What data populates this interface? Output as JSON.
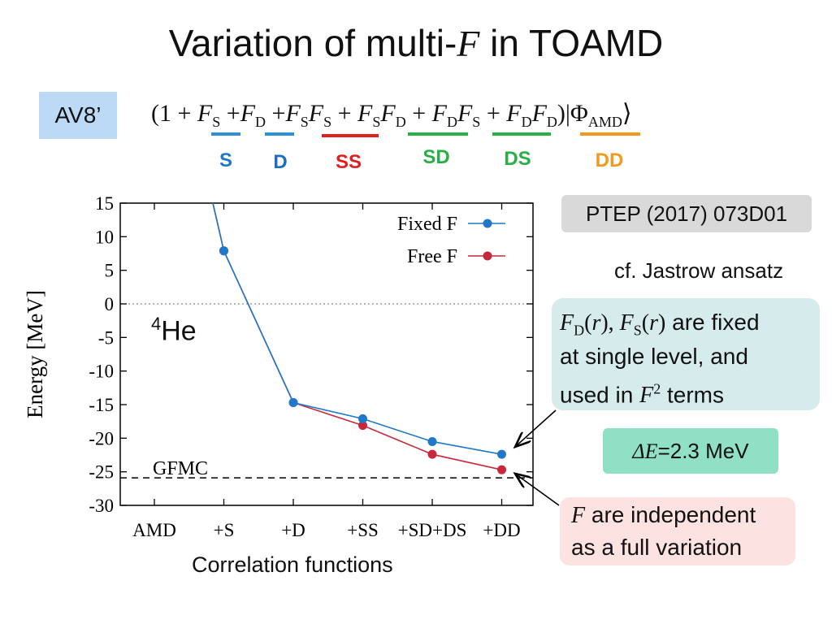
{
  "slide": {
    "title_pre": "Variation of multi-",
    "title_var": "F",
    "title_post": " in TOAMD",
    "label": "AV8’",
    "formula": {
      "open": "(1 + ",
      "close": ")|Φ",
      "close_sub": "AMD",
      "ket": "⟩"
    },
    "terms": [
      {
        "id": "S",
        "label": "S",
        "color": "#2E8FD9"
      },
      {
        "id": "D",
        "label": "D",
        "color": "#1A6FC4"
      },
      {
        "id": "SS",
        "label": "SS",
        "color": "#E02020"
      },
      {
        "id": "SD",
        "label": "SD",
        "color": "#28B046"
      },
      {
        "id": "DS",
        "label": "DS",
        "color": "#28B046"
      },
      {
        "id": "DD",
        "label": "DD",
        "color": "#F39A1E"
      }
    ],
    "reference": "PTEP (2017) 073D01",
    "cf_note": "cf. Jastrow ansatz",
    "fixed_note": {
      "line1_post": " are fixed",
      "line2": "at single level, and",
      "line3_pre": "used in ",
      "line3_post": " terms"
    },
    "delta_e": {
      "symbol": "ΔE",
      "value": "=2.3 MeV"
    },
    "free_note": {
      "line1_var": "F",
      "line1_post": " are independent",
      "line2": "as a full variation"
    },
    "nucleus": {
      "mass": "4",
      "symbol": "He"
    },
    "colors": {
      "fixed": "#1F78C8",
      "free": "#C8283C",
      "av8_bg": "#bcd9f5",
      "fixed_box": "#d6ebec",
      "delta_box": "#8fe0c4",
      "free_box": "#fde2e2"
    }
  },
  "chart_data": {
    "type": "line",
    "categories": [
      "AMD",
      "+S",
      "+D",
      "+SS",
      "+SD+DS",
      "+DD"
    ],
    "series": [
      {
        "name": "Fixed F",
        "values": [
          null,
          7.9,
          -14.7,
          -17.1,
          -20.5,
          -22.4
        ],
        "color": "#1F78C8"
      },
      {
        "name": "Free F",
        "values": [
          null,
          7.9,
          -14.7,
          -18.1,
          -22.4,
          -24.7
        ],
        "color": "#C8283C"
      }
    ],
    "curve_entry": {
      "from": "AMD",
      "note": "line enters from above y=15 between AMD and +S"
    },
    "reference_lines": [
      {
        "label": "GFMC",
        "y": -25.9,
        "style": "dashed"
      },
      {
        "label": "",
        "y": 0,
        "style": "dotted"
      }
    ],
    "ylabel": "Energy [MeV]",
    "xlabel": "Correlation functions",
    "ylim": [
      -30,
      15
    ],
    "yticks": [
      "15",
      "10",
      "5",
      "0",
      "-5",
      "-10",
      "-15",
      "-20",
      "-25",
      "-30"
    ],
    "legend": "top-right"
  }
}
